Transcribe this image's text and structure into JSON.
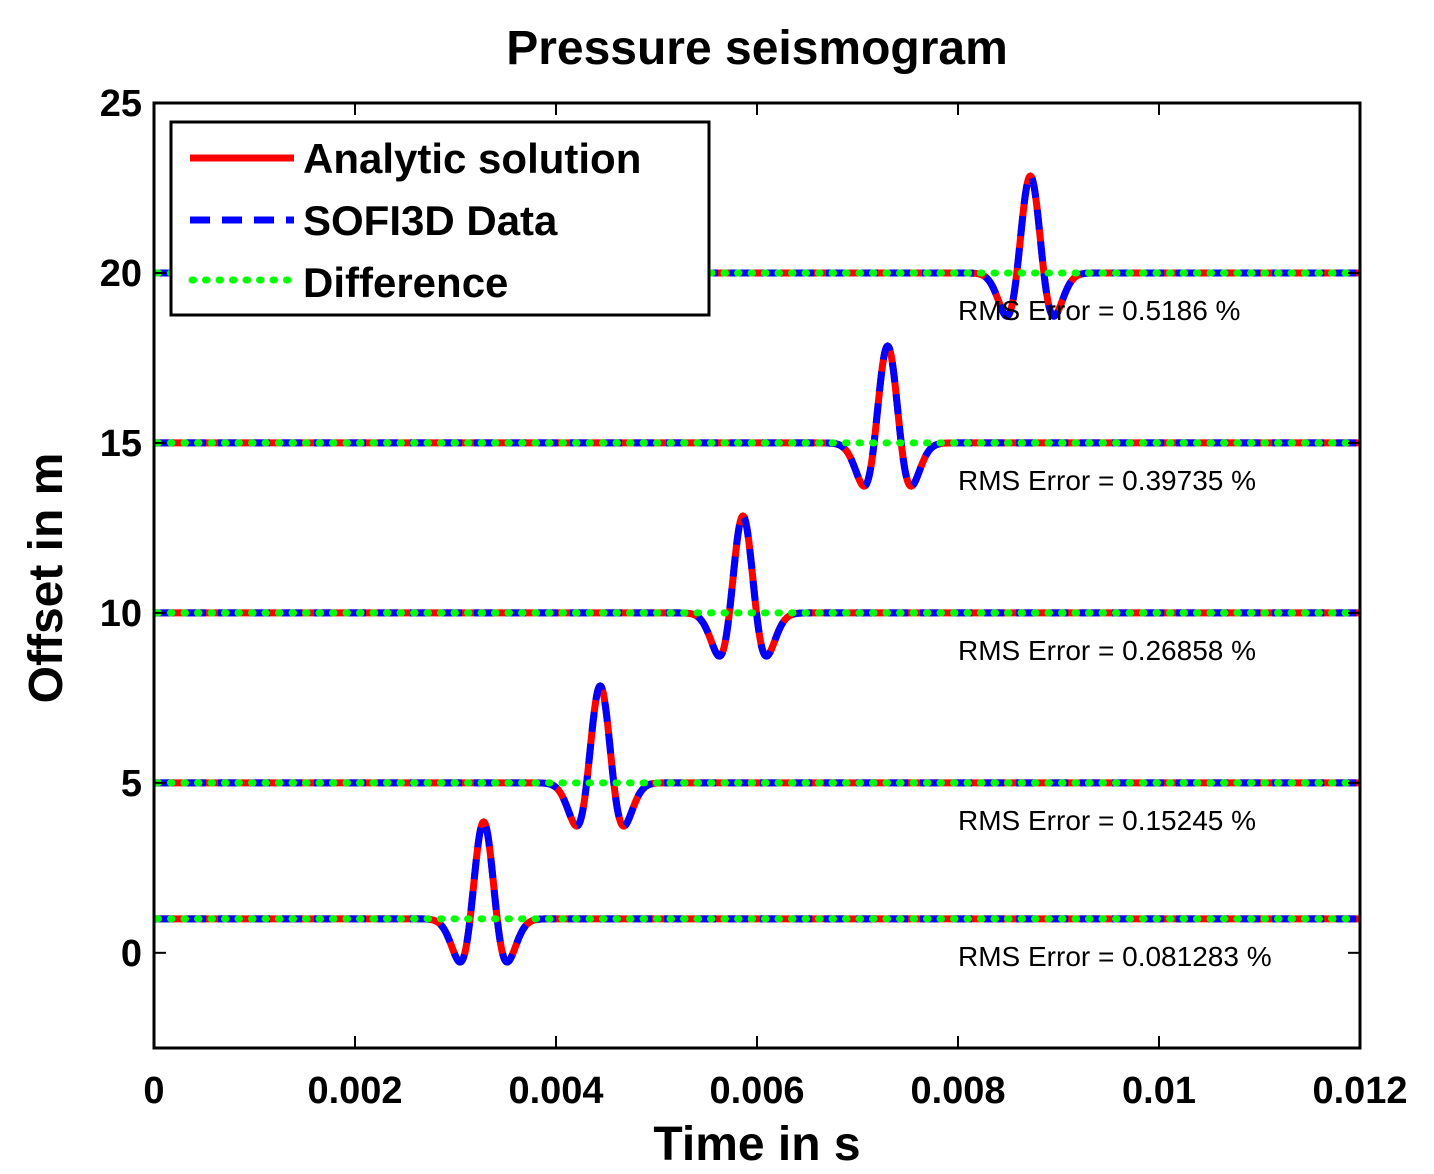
{
  "chart_data": {
    "type": "line",
    "title": "Pressure seismogram",
    "xlabel": "Time in s",
    "ylabel": "Offset in m",
    "xlim": [
      0,
      0.012
    ],
    "ylim": [
      -2.8,
      25
    ],
    "grid": false,
    "legend_position": "top-left",
    "x_ticks": [
      0,
      0.002,
      0.004,
      0.006,
      0.008,
      0.01,
      0.012
    ],
    "x_tick_labels": [
      "0",
      "0.002",
      "0.004",
      "0.006",
      "0.008",
      "0.01",
      "0.012"
    ],
    "y_ticks": [
      0,
      5,
      10,
      15,
      20,
      25
    ],
    "y_tick_labels": [
      "0",
      "5",
      "10",
      "15",
      "20",
      "25"
    ],
    "legend": [
      "Analytic solution",
      "SOFI3D Data",
      "Difference"
    ],
    "colors": {
      "analytic": "#ff0000",
      "sofi3d": "#0000ff",
      "difference": "#00ff00"
    },
    "traces": [
      {
        "offset": 1,
        "t_center": 0.00328,
        "peak": 3.85,
        "trough_level": -0.75,
        "rms_label": "RMS Error = 0.081283 %"
      },
      {
        "offset": 5,
        "t_center": 0.00444,
        "peak": 7.85,
        "trough_level": 3.3,
        "rms_label": "RMS Error = 0.15245 %"
      },
      {
        "offset": 10,
        "t_center": 0.00586,
        "peak": 12.85,
        "trough_level": 8.3,
        "rms_label": "RMS Error = 0.26858 %"
      },
      {
        "offset": 15,
        "t_center": 0.0073,
        "peak": 17.85,
        "trough_level": 13.3,
        "rms_label": "RMS Error = 0.39735 %"
      },
      {
        "offset": 20,
        "t_center": 0.00872,
        "peak": 22.85,
        "trough_level": 18.3,
        "rms_label": "RMS Error = 0.5186 %"
      }
    ]
  }
}
